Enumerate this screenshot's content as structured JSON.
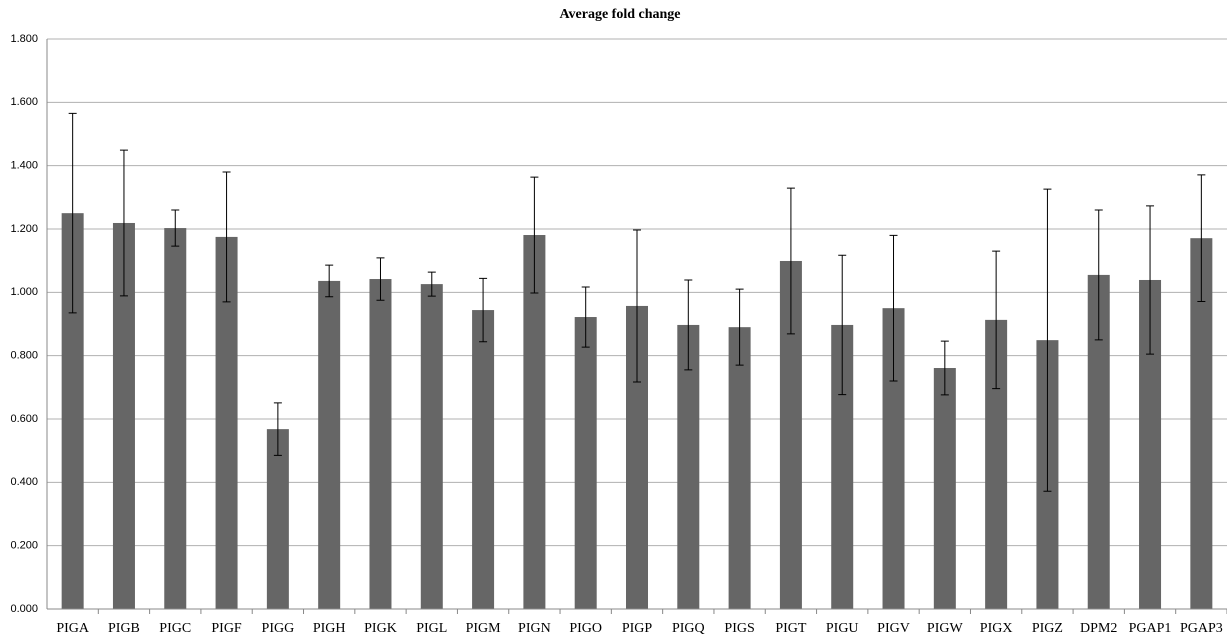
{
  "chart_data": {
    "type": "bar",
    "title": "Average fold change",
    "categories": [
      "PIGA",
      "PIGB",
      "PIGC",
      "PIGF",
      "PIGG",
      "PIGH",
      "PIGK",
      "PIGL",
      "PIGM",
      "PIGN",
      "PIGO",
      "PIGP",
      "PIGQ",
      "PIGS",
      "PIGT",
      "PIGU",
      "PIGV",
      "PIGW",
      "PIGX",
      "PIGZ",
      "DPM2",
      "PGAP1",
      "PGAP3"
    ],
    "series": [
      {
        "color": "#666666",
        "values": [
          1.25,
          1.219,
          1.203,
          1.175,
          0.568,
          1.036,
          1.042,
          1.026,
          0.944,
          1.181,
          0.922,
          0.957,
          0.897,
          0.89,
          1.099,
          0.897,
          0.95,
          0.761,
          0.913,
          0.849,
          1.055,
          1.039,
          1.171
        ],
        "errors": [
          0.315,
          0.23,
          0.057,
          0.205,
          0.083,
          0.05,
          0.067,
          0.038,
          0.1,
          0.183,
          0.095,
          0.24,
          0.142,
          0.12,
          0.23,
          0.22,
          0.23,
          0.085,
          0.217,
          0.477,
          0.205,
          0.234,
          0.2
        ]
      }
    ],
    "ylim": [
      0,
      1.8
    ],
    "yticks": [
      {
        "value": 0,
        "label": "0.000"
      },
      {
        "value": 0.2,
        "label": "0.200"
      },
      {
        "value": 0.4,
        "label": "0.400"
      },
      {
        "value": 0.6,
        "label": "0.600"
      },
      {
        "value": 0.8,
        "label": "0.800"
      },
      {
        "value": 1,
        "label": "1.000"
      },
      {
        "value": 1.2,
        "label": "1.200"
      },
      {
        "value": 1.4,
        "label": "1.400"
      },
      {
        "value": 1.6,
        "label": "1.600"
      },
      {
        "value": 1.8,
        "label": "1.800"
      }
    ],
    "grid": true
  }
}
